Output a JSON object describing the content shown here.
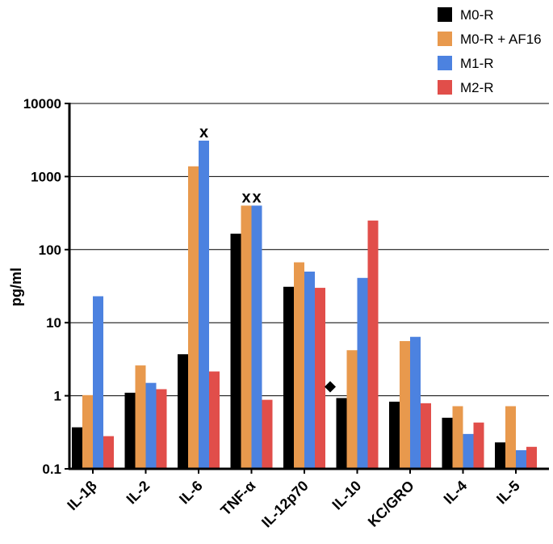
{
  "chart_data": {
    "type": "bar",
    "title": "",
    "xlabel": "",
    "ylabel": "pg/ml",
    "yscale": "log",
    "ylim": [
      0.1,
      10000
    ],
    "yticks": [
      "0.1",
      "1",
      "10",
      "100",
      "1000",
      "10000"
    ],
    "grid": "horizontal",
    "legend_position": "top-right",
    "categories": [
      "IL-1β",
      "IL-2",
      "IL-6",
      "TNF-α",
      "IL-12p70",
      "IL-10",
      "KC/GRO",
      "IL-4",
      "IL-5"
    ],
    "series": [
      {
        "name": "M0-R",
        "color": "#000000",
        "values": [
          0.37,
          1.1,
          3.7,
          165,
          31,
          0.93,
          0.83,
          0.5,
          0.23
        ]
      },
      {
        "name": "M0-R + AF16",
        "color": "#E8994D",
        "values": [
          1.02,
          2.6,
          1380,
          400,
          67,
          4.2,
          5.6,
          0.72,
          0.72
        ]
      },
      {
        "name": "M1-R",
        "color": "#4C82E0",
        "values": [
          23,
          1.5,
          3100,
          400,
          50,
          41,
          6.4,
          0.3,
          0.18
        ]
      },
      {
        "name": "M2-R",
        "color": "#E14E4A",
        "values": [
          0.28,
          1.23,
          2.15,
          0.88,
          30,
          250,
          0.79,
          0.43,
          0.2
        ]
      }
    ],
    "annotations": [
      {
        "text": "x",
        "category": "IL-6",
        "series": "M1-R"
      },
      {
        "text": "x",
        "category": "TNF-α",
        "series": "M0-R + AF16"
      },
      {
        "text": "x",
        "category": "TNF-α",
        "series": "M1-R"
      },
      {
        "text": "◆",
        "category": "IL-10",
        "series": "M0-R"
      }
    ]
  }
}
